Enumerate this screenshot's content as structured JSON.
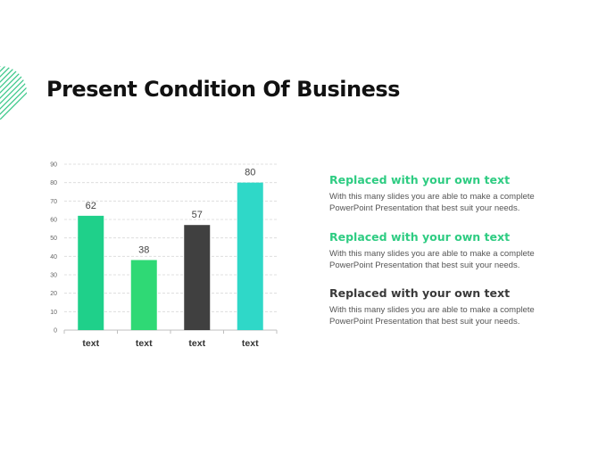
{
  "slide": {
    "title": "Present Condition Of Business",
    "accent_colors": {
      "green_bright": "#1fd08a",
      "green": "#2fd975",
      "dark": "#404040",
      "teal": "#2fd8c8",
      "deco_stripes": "#3cc88a"
    }
  },
  "chart_data": {
    "type": "bar",
    "categories": [
      "text",
      "text",
      "text",
      "text"
    ],
    "values": [
      62,
      38,
      57,
      80
    ],
    "bar_colors": [
      "#1fd08a",
      "#2fd975",
      "#404040",
      "#2fd8c8"
    ],
    "ylim": [
      0,
      90
    ],
    "yticks": [
      0,
      10,
      20,
      30,
      40,
      50,
      60,
      70,
      80,
      90
    ],
    "grid": true,
    "data_labels": true,
    "title": "",
    "xlabel": "",
    "ylabel": ""
  },
  "panels": [
    {
      "heading": "Replaced with your own text",
      "heading_color": "#2ecc82",
      "body": "With this many slides you are able to make a complete PowerPoint Presentation that best suit your needs."
    },
    {
      "heading": "Replaced with your own text",
      "heading_color": "#2ecc82",
      "body": "With this many slides you are able to make a complete PowerPoint Presentation that best suit your needs."
    },
    {
      "heading": "Replaced with your own text",
      "heading_color": "#3a3a3a",
      "body": "With this many slides you are able to make a complete PowerPoint Presentation that best suit your needs."
    }
  ]
}
